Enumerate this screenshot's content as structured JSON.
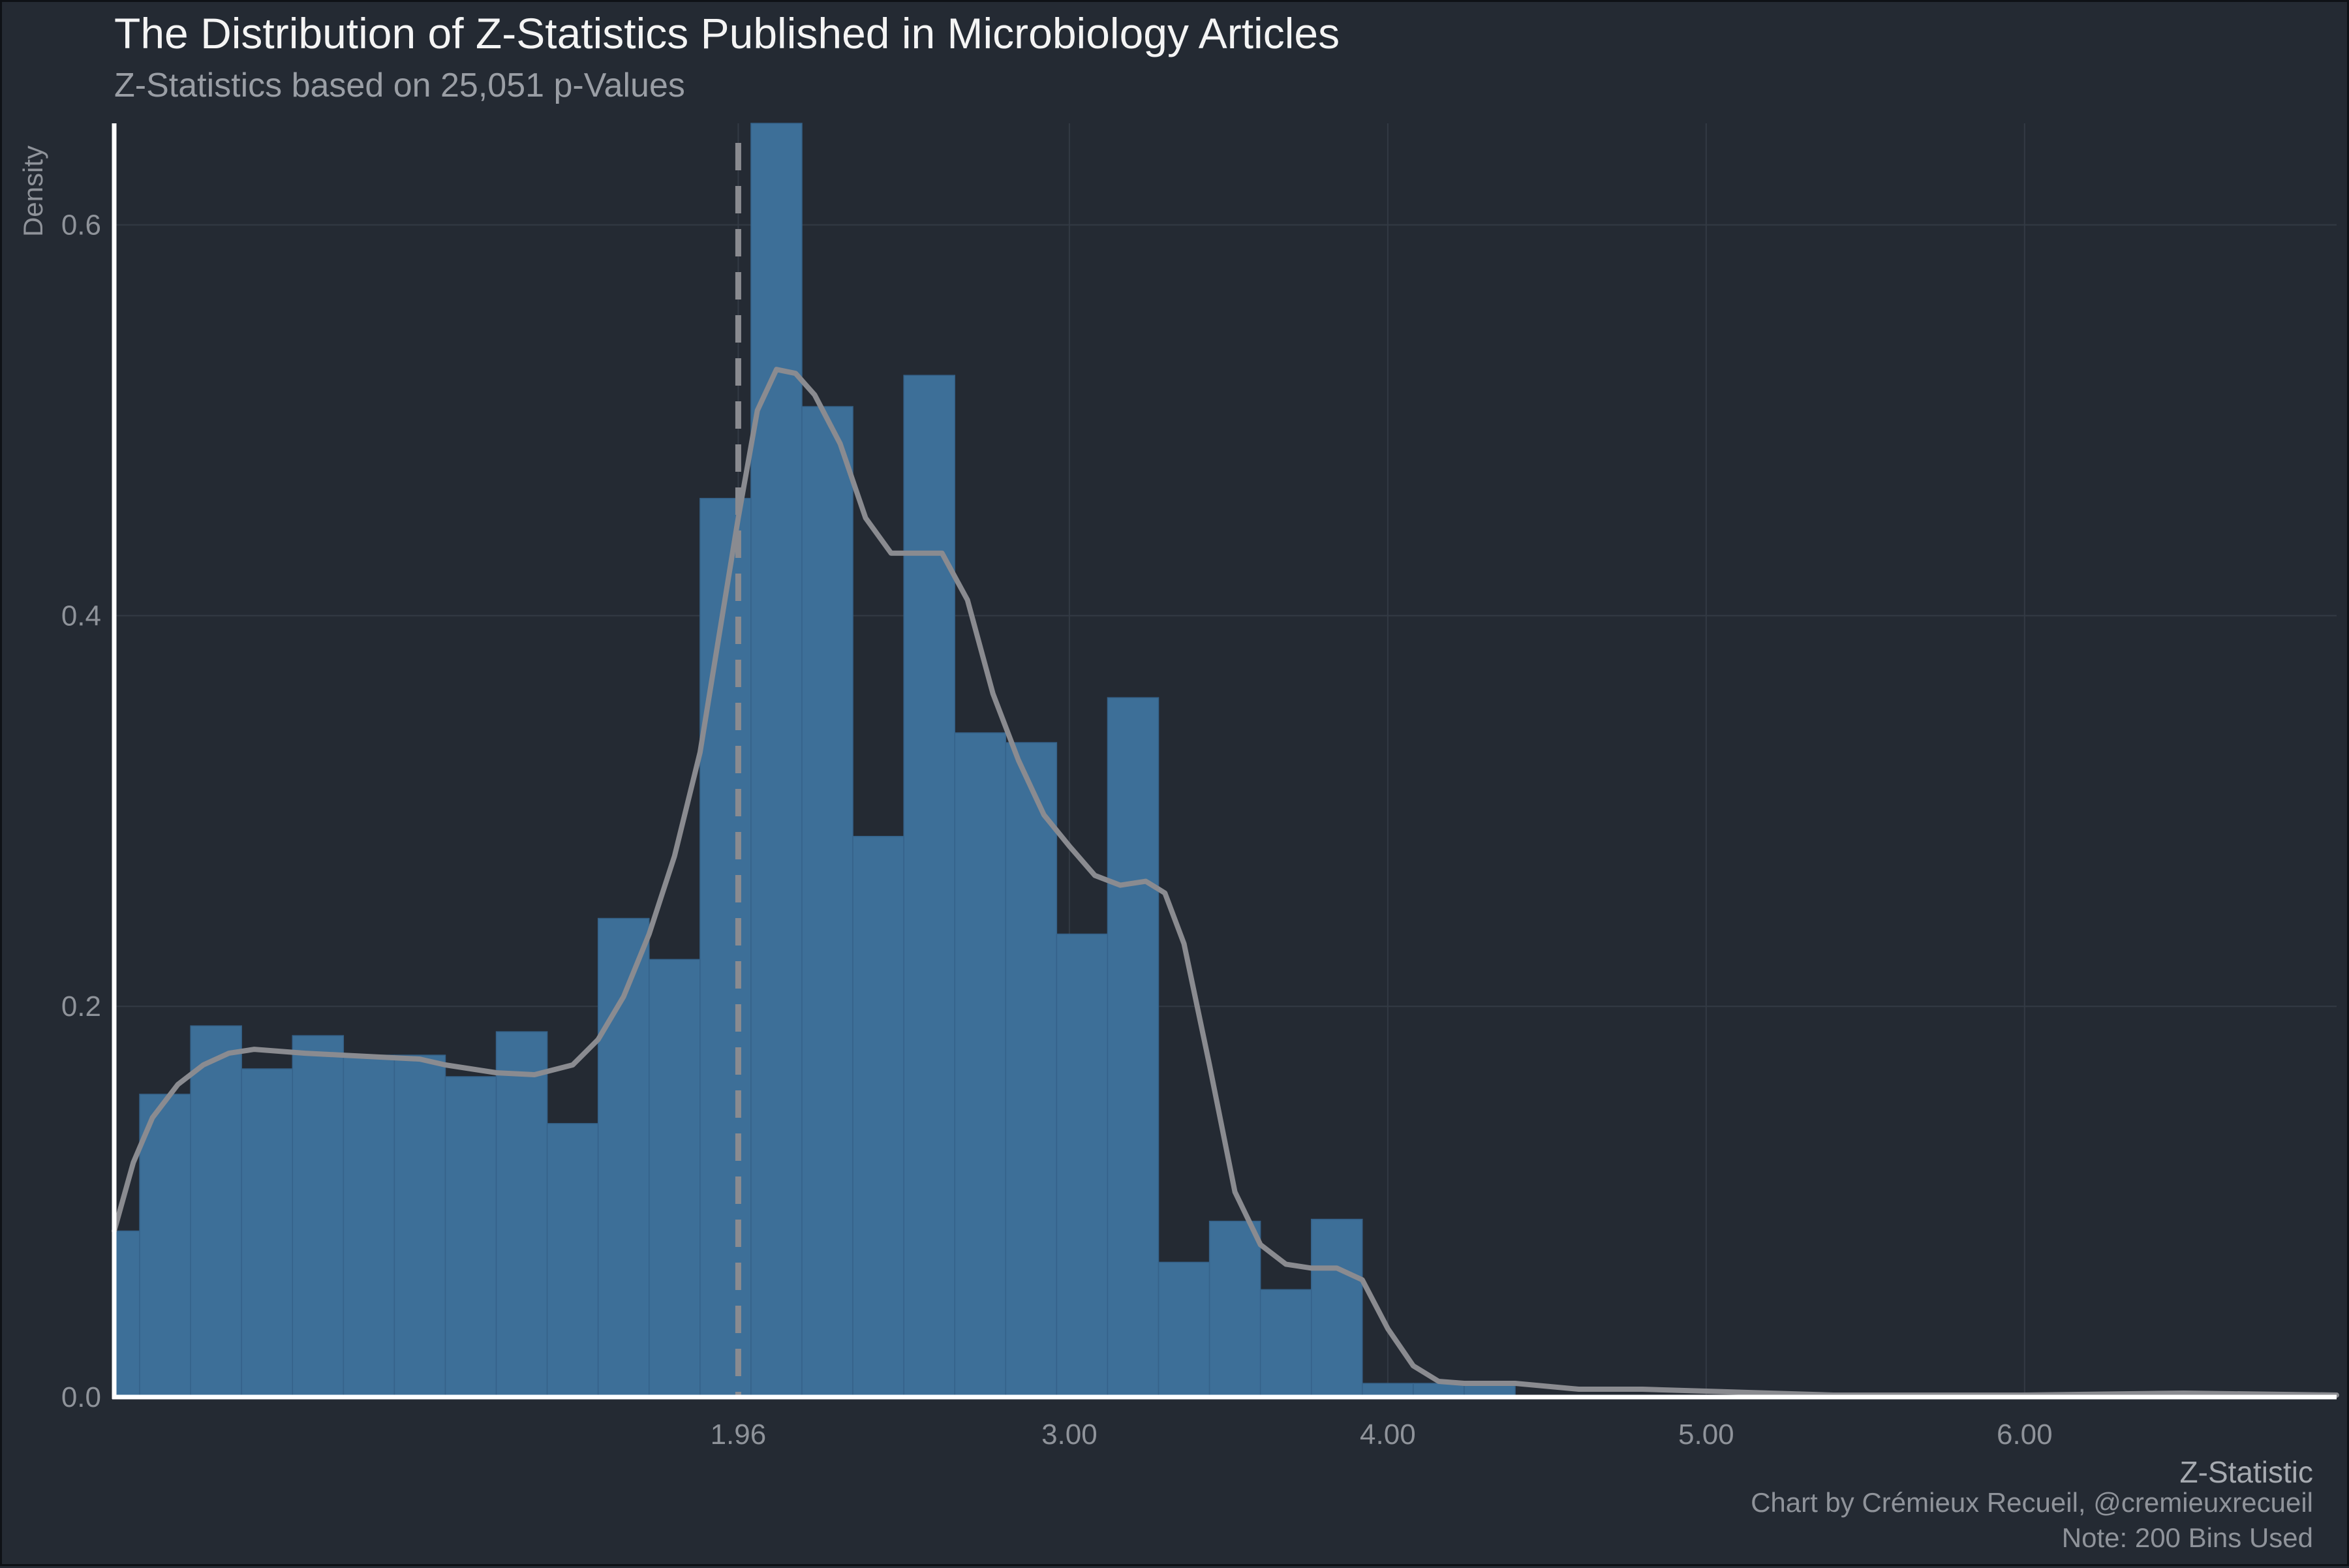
{
  "chart_data": {
    "type": "histogram",
    "title": "The Distribution of Z-Statistics Published in Microbiology Articles",
    "subtitle": "Z-Statistics based on 25,051 p-Values",
    "xlabel": "Z-Statistic",
    "ylabel": "Density",
    "caption": [
      "Chart by Crémieux Recueil, @cremieuxrecueil",
      "Note: 200 Bins Used"
    ],
    "xlim": [
      0.0,
      6.98
    ],
    "ylim": [
      0.0,
      0.652
    ],
    "x_ticks": [
      1.96,
      3.0,
      4.0,
      5.0,
      6.0
    ],
    "x_tick_labels": [
      "1.96",
      "3.00",
      "4.00",
      "5.00",
      "6.00"
    ],
    "y_ticks": [
      0.0,
      0.2,
      0.4,
      0.6
    ],
    "y_tick_labels": [
      "0.0",
      "0.2",
      "0.4",
      "0.6"
    ],
    "grid": true,
    "reference_line": {
      "x": 1.96,
      "style": "dashed"
    },
    "bin_width": 0.16,
    "bins": [
      {
        "x0": 0.0,
        "x1": 0.08,
        "density": 0.085
      },
      {
        "x0": 0.08,
        "x1": 0.24,
        "density": 0.155
      },
      {
        "x0": 0.24,
        "x1": 0.4,
        "density": 0.19
      },
      {
        "x0": 0.4,
        "x1": 0.56,
        "density": 0.168
      },
      {
        "x0": 0.56,
        "x1": 0.72,
        "density": 0.185
      },
      {
        "x0": 0.72,
        "x1": 0.88,
        "density": 0.175
      },
      {
        "x0": 0.88,
        "x1": 1.04,
        "density": 0.175
      },
      {
        "x0": 1.04,
        "x1": 1.2,
        "density": 0.164
      },
      {
        "x0": 1.2,
        "x1": 1.36,
        "density": 0.187
      },
      {
        "x0": 1.36,
        "x1": 1.52,
        "density": 0.14
      },
      {
        "x0": 1.52,
        "x1": 1.68,
        "density": 0.245
      },
      {
        "x0": 1.68,
        "x1": 1.84,
        "density": 0.224
      },
      {
        "x0": 1.84,
        "x1": 2.0,
        "density": 0.46
      },
      {
        "x0": 2.0,
        "x1": 2.16,
        "density": 0.652
      },
      {
        "x0": 2.16,
        "x1": 2.32,
        "density": 0.507
      },
      {
        "x0": 2.32,
        "x1": 2.48,
        "density": 0.287
      },
      {
        "x0": 2.48,
        "x1": 2.64,
        "density": 0.523
      },
      {
        "x0": 2.64,
        "x1": 2.8,
        "density": 0.34
      },
      {
        "x0": 2.8,
        "x1": 2.96,
        "density": 0.335
      },
      {
        "x0": 2.96,
        "x1": 3.12,
        "density": 0.237
      },
      {
        "x0": 3.12,
        "x1": 3.28,
        "density": 0.358
      },
      {
        "x0": 3.28,
        "x1": 3.44,
        "density": 0.069
      },
      {
        "x0": 3.44,
        "x1": 3.6,
        "density": 0.09
      },
      {
        "x0": 3.6,
        "x1": 3.76,
        "density": 0.055
      },
      {
        "x0": 3.76,
        "x1": 3.92,
        "density": 0.091
      },
      {
        "x0": 3.92,
        "x1": 4.08,
        "density": 0.007
      },
      {
        "x0": 4.08,
        "x1": 4.24,
        "density": 0.007
      },
      {
        "x0": 4.24,
        "x1": 4.4,
        "density": 0.007
      }
    ],
    "density_curve": {
      "x": [
        0.0,
        0.06,
        0.12,
        0.2,
        0.28,
        0.36,
        0.44,
        0.52,
        0.6,
        0.72,
        0.84,
        0.96,
        1.04,
        1.12,
        1.2,
        1.32,
        1.44,
        1.52,
        1.6,
        1.68,
        1.76,
        1.84,
        1.9,
        1.96,
        2.02,
        2.08,
        2.14,
        2.2,
        2.28,
        2.36,
        2.44,
        2.52,
        2.6,
        2.68,
        2.76,
        2.84,
        2.92,
        3.0,
        3.08,
        3.16,
        3.24,
        3.3,
        3.36,
        3.44,
        3.52,
        3.6,
        3.68,
        3.76,
        3.84,
        3.92,
        4.0,
        4.08,
        4.16,
        4.24,
        4.4,
        4.6,
        4.8,
        5.0,
        5.4,
        6.0,
        6.5,
        6.98
      ],
      "y": [
        0.085,
        0.12,
        0.143,
        0.16,
        0.17,
        0.176,
        0.178,
        0.177,
        0.176,
        0.175,
        0.174,
        0.173,
        0.17,
        0.168,
        0.166,
        0.165,
        0.17,
        0.183,
        0.205,
        0.237,
        0.277,
        0.33,
        0.39,
        0.45,
        0.505,
        0.526,
        0.524,
        0.513,
        0.488,
        0.45,
        0.432,
        0.432,
        0.432,
        0.408,
        0.36,
        0.326,
        0.298,
        0.282,
        0.267,
        0.262,
        0.264,
        0.258,
        0.232,
        0.17,
        0.105,
        0.078,
        0.068,
        0.066,
        0.066,
        0.06,
        0.035,
        0.016,
        0.008,
        0.007,
        0.007,
        0.004,
        0.004,
        0.003,
        0.001,
        0.001,
        0.002,
        0.001
      ]
    },
    "colors": {
      "background": "#242a33",
      "bar_fill": "#3d6f98",
      "curve": "#8a8b90",
      "reference_line": "#8a8b90",
      "gridline": "#333a44",
      "axis": "#ffffff"
    }
  }
}
